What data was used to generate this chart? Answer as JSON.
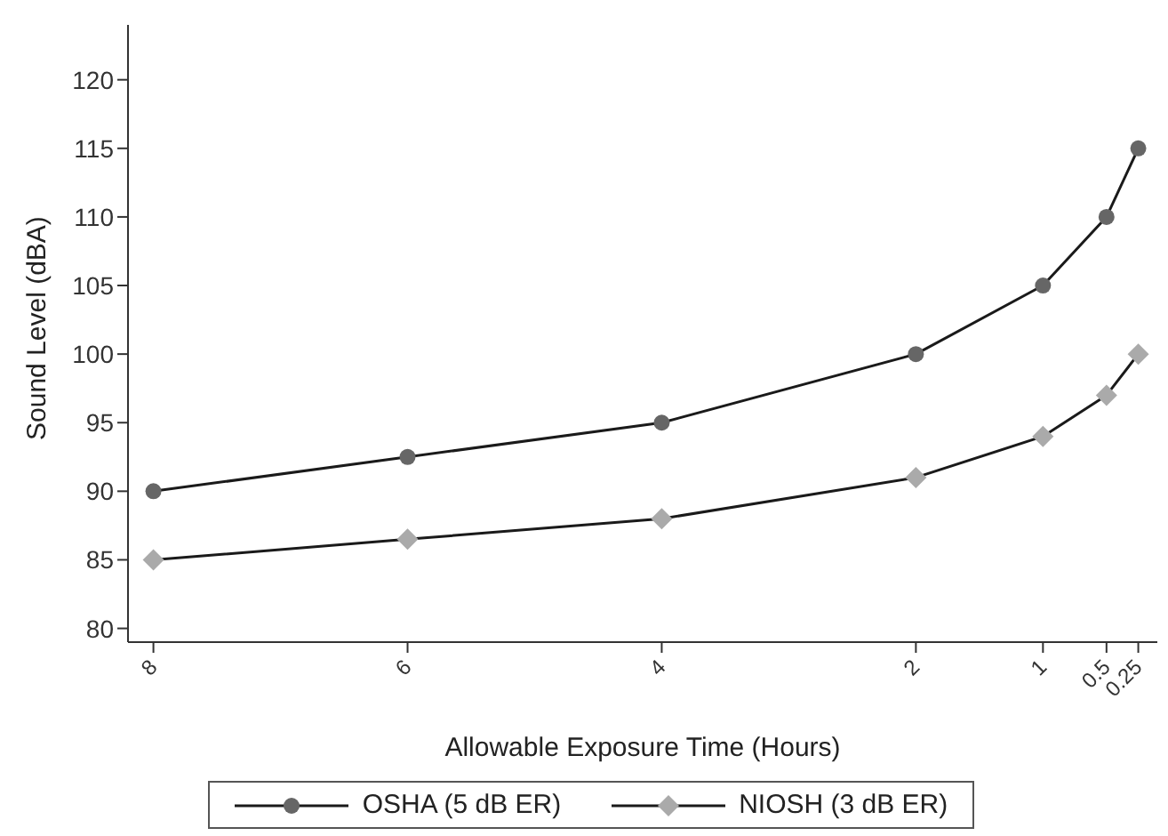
{
  "chart_data": {
    "type": "line",
    "xlabel": "Allowable Exposure Time (Hours)",
    "ylabel": "Sound Level (dBA)",
    "x": [
      8,
      6,
      4,
      2,
      1,
      0.5,
      0.25
    ],
    "xlim": [
      8.2,
      0.1
    ],
    "xticks": [
      8,
      6,
      4,
      2,
      1,
      0.5,
      0.25
    ],
    "ylim": [
      79,
      124
    ],
    "yticks": [
      80,
      85,
      90,
      95,
      100,
      105,
      110,
      115,
      120
    ],
    "legend": "bottom",
    "series": [
      {
        "name": "OSHA (5 dB ER)",
        "color": "#666666",
        "marker": "circle",
        "values": [
          90,
          92.5,
          95,
          100,
          105,
          110,
          115
        ]
      },
      {
        "name": "NIOSH (3 dB ER)",
        "color": "#aaaaaa",
        "marker": "diamond",
        "values": [
          85,
          86.5,
          88,
          91,
          94,
          97,
          100
        ]
      }
    ]
  }
}
